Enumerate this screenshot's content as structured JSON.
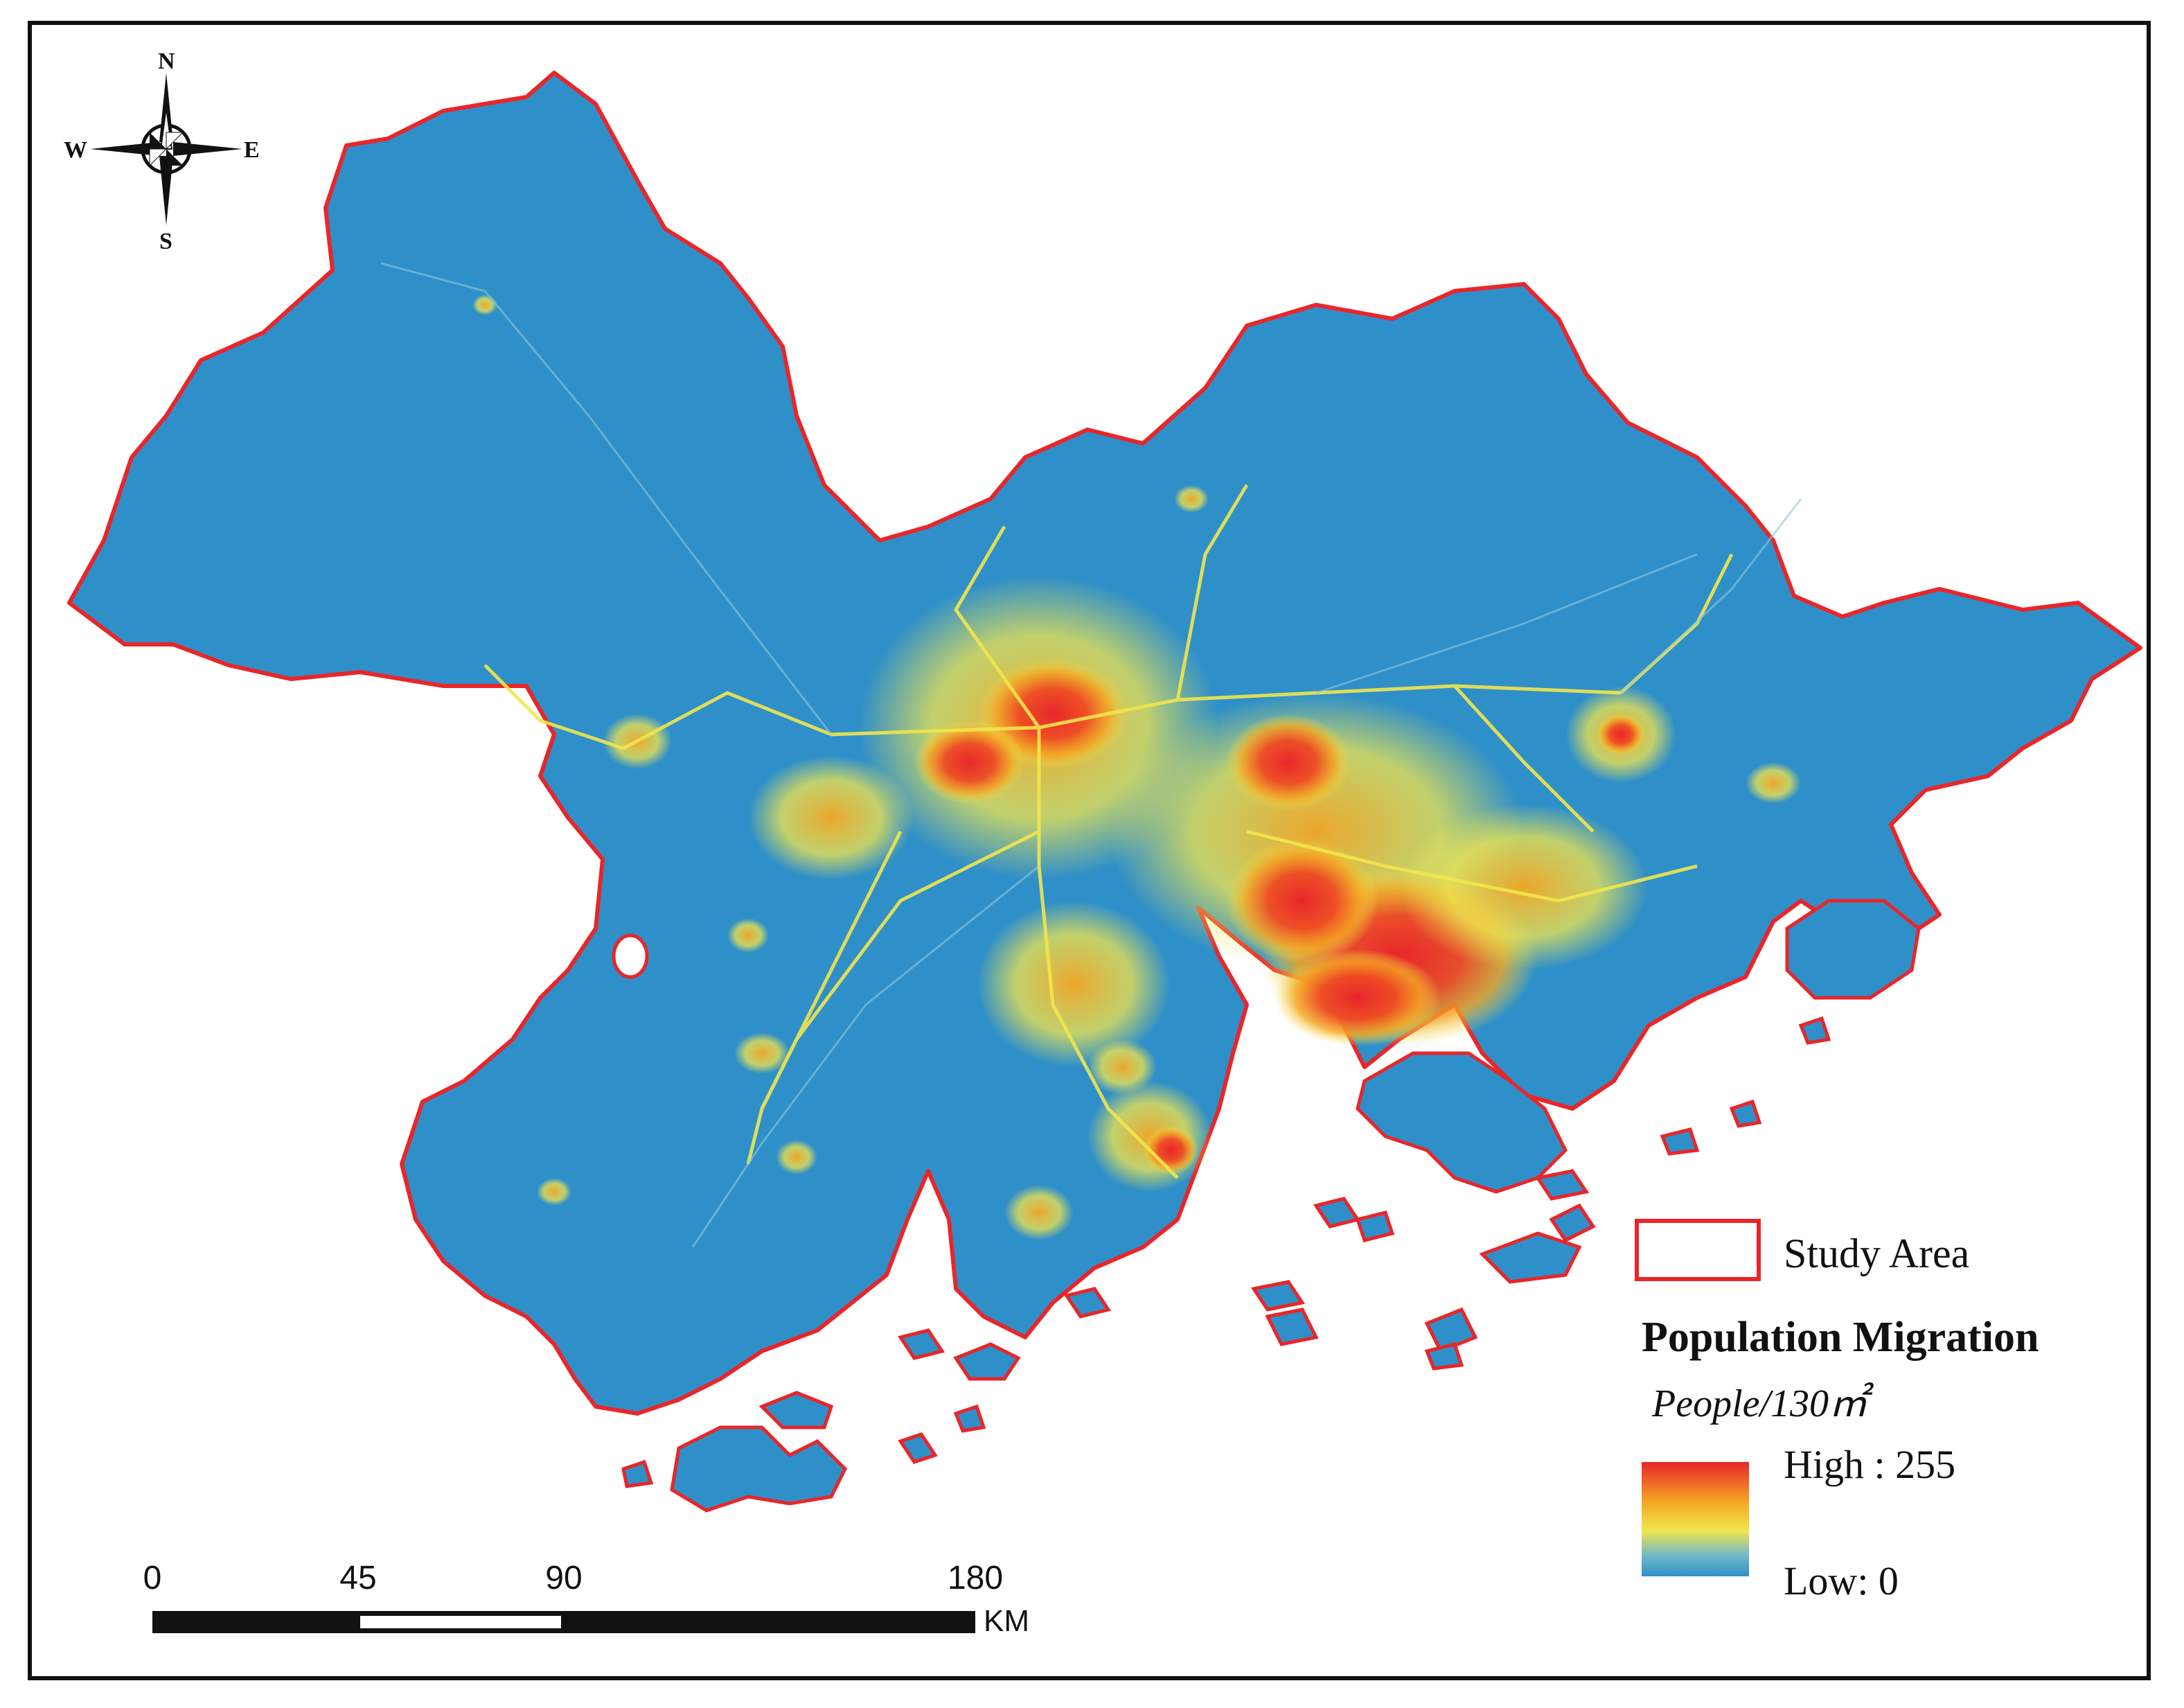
{
  "compass": {
    "north": "N",
    "south": "S",
    "east": "E",
    "west": "W"
  },
  "legend": {
    "boundary_label": "Study Area",
    "title": "Population Migration",
    "unit": "People/130㎡",
    "high_label": "High : 255",
    "low_label": "Low:  0",
    "boundary_color": "#e8262a",
    "ramp_colors": [
      "#e8262a",
      "#f5a623",
      "#f2e64e",
      "#6fb9c9",
      "#2f8fc9"
    ]
  },
  "scale_bar": {
    "ticks": [
      "0",
      "45",
      "90",
      "180"
    ],
    "unit": "KM"
  },
  "colors": {
    "land": "#2f8fc9",
    "hotspot_high": "#e8262a",
    "hotspot_mid": "#f5a623",
    "hotspot_low": "#f2e64e"
  }
}
